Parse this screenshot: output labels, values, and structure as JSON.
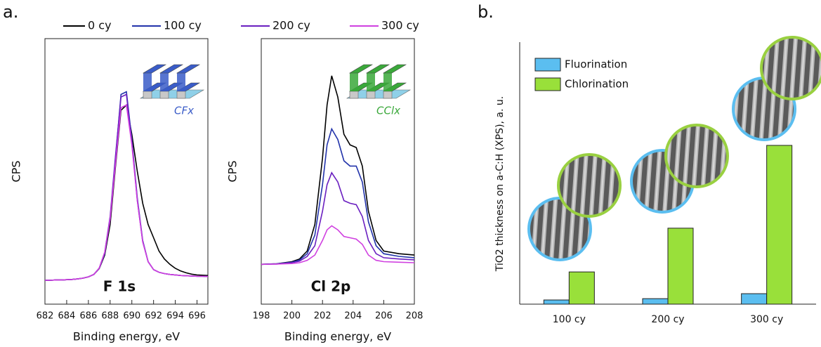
{
  "panel_labels": [
    "a.",
    "b."
  ],
  "chart_data": [
    {
      "type": "line",
      "ylabel": "CPS",
      "xlabel": "Binding energy, eV",
      "label": "F 1s",
      "inset_label": "CFx",
      "inset_color": "#3a5cc8",
      "legend": "top",
      "xlim": [
        682,
        697
      ],
      "xticks": [
        682,
        684,
        686,
        688,
        690,
        692,
        694,
        696
      ],
      "ylim": [
        0,
        100
      ],
      "x": [
        682,
        682.5,
        683,
        683.5,
        684,
        684.5,
        685,
        685.5,
        686,
        686.5,
        687,
        687.5,
        688,
        688.5,
        689,
        689.5,
        690,
        690.5,
        691,
        691.5,
        692,
        692.5,
        693,
        693.5,
        694,
        694.5,
        695,
        695.5,
        696,
        696.5,
        697
      ],
      "series": [
        {
          "name": "0 cy",
          "color": "#000000",
          "values": [
            9.0,
            9.0,
            9.1,
            9.1,
            9.2,
            9.3,
            9.5,
            9.8,
            10.3,
            11.2,
            13.4,
            18.5,
            30,
            52,
            73,
            75,
            64,
            50,
            38,
            30,
            25,
            20,
            17,
            15,
            13.5,
            12.5,
            11.8,
            11.3,
            11.0,
            10.9,
            10.8
          ]
        },
        {
          "name": "100 cy",
          "color": "#2233aa",
          "values": [
            9.0,
            9.0,
            9.1,
            9.1,
            9.2,
            9.3,
            9.5,
            9.8,
            10.3,
            11.2,
            13.5,
            19,
            32,
            55,
            79,
            80,
            62,
            40,
            24,
            16,
            13,
            12,
            11.5,
            11.2,
            11.0,
            10.8,
            10.7,
            10.6,
            10.5,
            10.5,
            10.4
          ]
        },
        {
          "name": "200 cy",
          "color": "#6a1fc0",
          "values": [
            9.0,
            9.0,
            9.1,
            9.1,
            9.2,
            9.3,
            9.5,
            9.8,
            10.3,
            11.2,
            13.6,
            19.5,
            33,
            56,
            78,
            79,
            61,
            39,
            23.5,
            16,
            13,
            12,
            11.5,
            11.2,
            11.0,
            10.8,
            10.7,
            10.6,
            10.5,
            10.5,
            10.4
          ]
        },
        {
          "name": "300 cy",
          "color": "#d040e0",
          "values": [
            9.0,
            9.0,
            9.1,
            9.1,
            9.2,
            9.3,
            9.5,
            9.8,
            10.3,
            11.2,
            13.6,
            19.5,
            32,
            53,
            74,
            75,
            60,
            39,
            23.5,
            16,
            13,
            12,
            11.5,
            11.2,
            11.0,
            10.8,
            10.7,
            10.6,
            10.5,
            10.5,
            10.4
          ]
        }
      ]
    },
    {
      "type": "line",
      "ylabel": "CPS",
      "xlabel": "Binding energy, eV",
      "label": "Cl 2p",
      "inset_label": "CClx",
      "inset_color": "#3aa83a",
      "xlim": [
        198,
        208
      ],
      "xticks": [
        198,
        200,
        202,
        204,
        206,
        208
      ],
      "ylim": [
        0,
        100
      ],
      "x": [
        198,
        199,
        200,
        200.5,
        201,
        201.5,
        202,
        202.3,
        202.6,
        203,
        203.4,
        203.8,
        204.2,
        204.6,
        205,
        205.5,
        206,
        207,
        208
      ],
      "series": [
        {
          "name": "0 cy",
          "color": "#000000",
          "values": [
            15,
            15.2,
            16,
            17,
            20,
            30,
            55,
            75,
            86,
            78,
            64,
            60,
            59,
            52,
            35,
            24,
            20,
            19,
            18.5
          ]
        },
        {
          "name": "100 cy",
          "color": "#2233aa",
          "values": [
            15,
            15.2,
            15.8,
            16.6,
            19,
            26,
            45,
            60,
            66,
            62,
            54,
            52,
            52,
            46,
            31,
            22,
            19,
            18,
            17.5
          ]
        },
        {
          "name": "200 cy",
          "color": "#6a1fc0",
          "values": [
            15,
            15.1,
            15.6,
            16.2,
            18,
            22,
            35,
            45,
            49.5,
            46,
            39,
            38,
            37.5,
            33,
            24,
            19,
            17.5,
            17,
            16.7
          ]
        },
        {
          "name": "300 cy",
          "color": "#d040e0",
          "values": [
            15,
            15.1,
            15.3,
            15.6,
            16.5,
            18.5,
            24,
            28,
            29.5,
            28,
            25.5,
            25,
            24.5,
            22.5,
            18.5,
            16.5,
            16,
            15.8,
            15.6
          ]
        }
      ]
    },
    {
      "type": "bar",
      "ylabel": "TiO2 thickness on a-C:H (XPS), a. u.",
      "legend": "upper left",
      "ylim": [
        0,
        100
      ],
      "categories": [
        "100 cy",
        "200 cy",
        "300 cy"
      ],
      "series": [
        {
          "name": "Fluorination",
          "color": "#5bbef0",
          "values": [
            1.6,
            2.1,
            4.0
          ]
        },
        {
          "name": "Chlorination",
          "color": "#99e03a",
          "values": [
            12.3,
            29.0,
            60.6
          ]
        }
      ]
    }
  ]
}
